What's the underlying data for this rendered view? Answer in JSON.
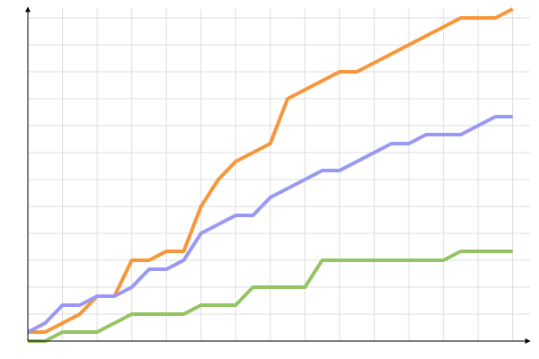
{
  "chart_data": {
    "type": "line",
    "x": [
      0,
      1,
      2,
      3,
      4,
      5,
      6,
      7,
      8,
      9,
      10,
      11,
      12,
      13,
      14,
      15,
      16,
      17,
      18,
      19,
      20,
      21,
      22,
      23,
      24,
      25,
      26,
      27,
      28
    ],
    "series": [
      {
        "color": "#f7963a",
        "values": [
          1,
          1,
          2,
          3,
          5,
          5,
          9,
          9,
          10,
          10,
          15,
          18,
          20,
          21,
          22,
          27,
          28,
          29,
          30,
          30,
          31,
          32,
          33,
          34,
          35,
          36,
          36,
          36,
          37
        ]
      },
      {
        "color": "#9999f5",
        "values": [
          1,
          2,
          4,
          4,
          5,
          5,
          6,
          8,
          8,
          9,
          12,
          13,
          14,
          14,
          16,
          17,
          18,
          19,
          19,
          20,
          21,
          22,
          22,
          23,
          23,
          23,
          24,
          25,
          25
        ]
      },
      {
        "color": "#93c565",
        "values": [
          0,
          0,
          1,
          1,
          1,
          2,
          3,
          3,
          3,
          3,
          4,
          4,
          4,
          6,
          6,
          6,
          6,
          9,
          9,
          9,
          9,
          9,
          9,
          9,
          9,
          10,
          10,
          10,
          10
        ]
      }
    ],
    "xlim": [
      0,
      29
    ],
    "ylim": [
      0,
      37
    ],
    "xticks": [
      0,
      2,
      4,
      6,
      8,
      10,
      12,
      14,
      16,
      18,
      20,
      22,
      24,
      26,
      28
    ],
    "yticks": [
      0,
      3,
      6,
      9,
      12,
      15,
      18,
      21,
      24,
      27,
      30,
      33,
      36
    ],
    "grid": true
  }
}
